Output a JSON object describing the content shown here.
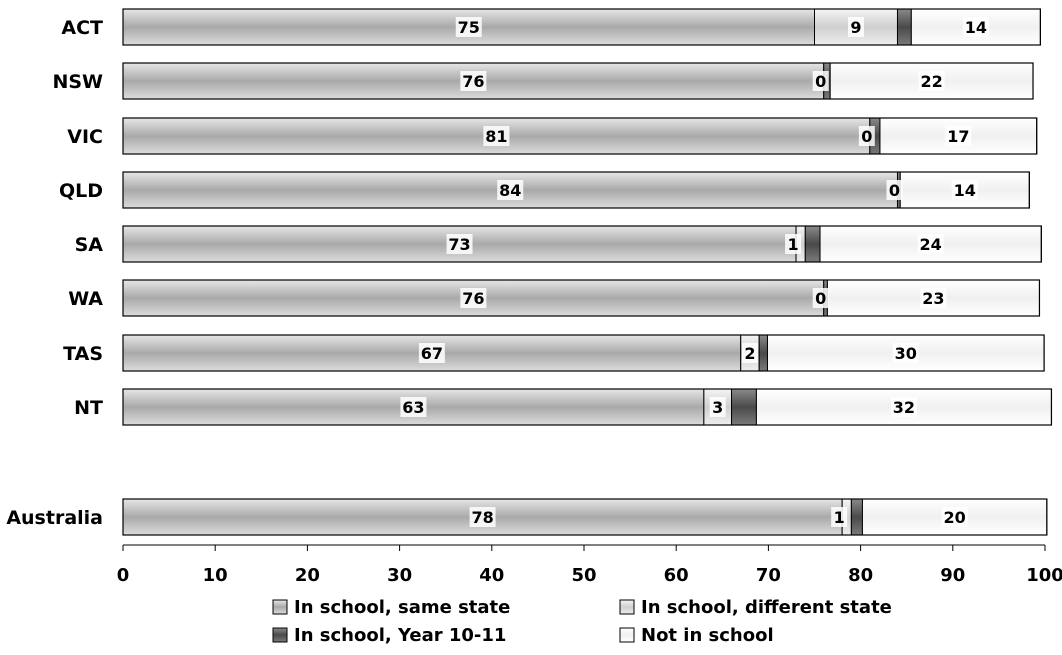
{
  "chart_data": {
    "type": "bar",
    "orientation": "horizontal",
    "stacked": true,
    "categories": [
      "ACT",
      "NSW",
      "VIC",
      "QLD",
      "SA",
      "WA",
      "TAS",
      "NT",
      "Australia"
    ],
    "series": [
      {
        "name": "In school, same state",
        "values": [
          75,
          76,
          81,
          84,
          73,
          76,
          67,
          63,
          78
        ],
        "color": "#b0b0b0"
      },
      {
        "name": "In school, different state",
        "values": [
          9,
          0,
          0,
          0,
          1,
          0,
          2,
          3,
          1
        ],
        "color": "#d6d6d6"
      },
      {
        "name": "In school, Year 10-11",
        "values": [
          1.5,
          0.7,
          1.1,
          0.3,
          1.6,
          0.4,
          0.9,
          2.7,
          1.2
        ],
        "color": "#5a5a5a"
      },
      {
        "name": "Not in school",
        "values": [
          14,
          22,
          17,
          14,
          24,
          23,
          30,
          32,
          20
        ],
        "color": "#f2f2f2"
      }
    ],
    "data_labels": [
      [
        "75",
        "9",
        "",
        "14"
      ],
      [
        "76",
        "0",
        "",
        "22"
      ],
      [
        "81",
        "0",
        "",
        "17"
      ],
      [
        "84",
        "0",
        "",
        "14"
      ],
      [
        "73",
        "1",
        "",
        "24"
      ],
      [
        "76",
        "0",
        "",
        "23"
      ],
      [
        "67",
        "2",
        "",
        "30"
      ],
      [
        "63",
        "3",
        "",
        "32"
      ],
      [
        "78",
        "1",
        "",
        "20"
      ]
    ],
    "xlim": [
      0,
      100
    ],
    "xticks": [
      "0",
      "10",
      "20",
      "30",
      "40",
      "50",
      "60",
      "70",
      "80",
      "90",
      "100"
    ],
    "title": "",
    "xlabel": "",
    "ylabel": "",
    "grid": false,
    "legend_position": "bottom"
  }
}
